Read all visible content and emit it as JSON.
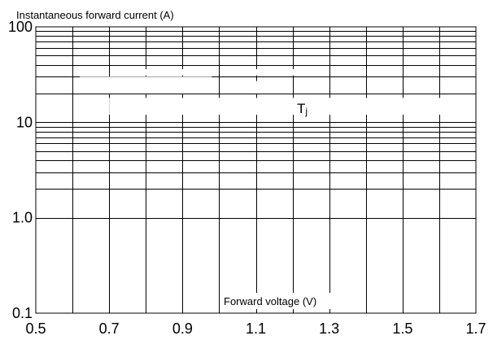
{
  "chart_data": {
    "type": "line",
    "title": "",
    "xlabel": "Forward voltage (V)",
    "ylabel": "Instantaneous forward current (A)",
    "x_scale": "linear",
    "y_scale": "log",
    "xlim": [
      0.5,
      1.7
    ],
    "ylim": [
      0.1,
      100
    ],
    "x_ticks": [
      0.5,
      0.7,
      0.9,
      1.1,
      1.3,
      1.5,
      1.7
    ],
    "x_tick_labels": [
      "0.5",
      "0.7",
      "0.9",
      "1.1",
      "1.3",
      "1.5",
      "1.7"
    ],
    "y_ticks": [
      0.1,
      1,
      10,
      100
    ],
    "y_tick_labels": [
      "0.1",
      "1.0",
      "10",
      "100"
    ],
    "grid": true,
    "annotation": {
      "text": "T",
      "subscript": "j"
    },
    "series": []
  }
}
